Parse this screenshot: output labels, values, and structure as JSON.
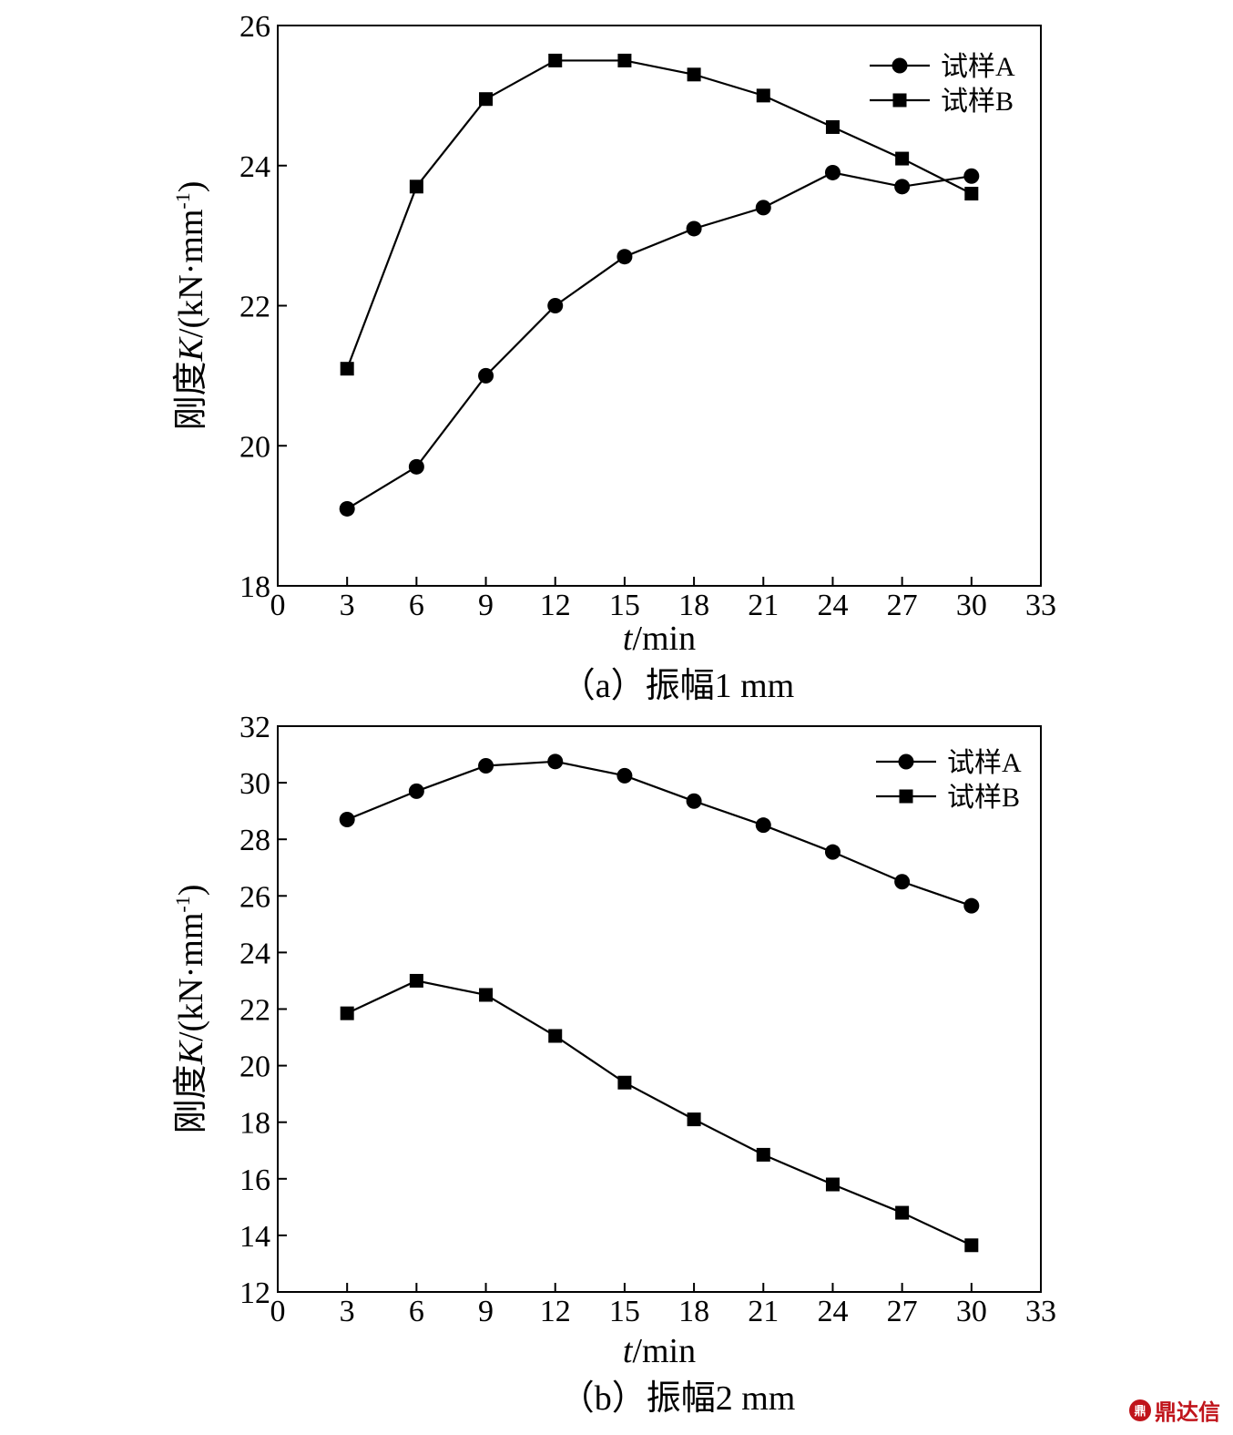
{
  "chart_data": [
    {
      "type": "line",
      "caption": "（a）振幅1 mm",
      "xlabel_italic": "t",
      "xlabel_rest": "/min",
      "ylabel_prefix": "刚度",
      "ylabel_italic": "K",
      "ylabel_rest": "/(kN·mm",
      "ylabel_sup": "-1",
      "ylabel_close": ")",
      "xlim": [
        0,
        33
      ],
      "ylim": [
        18,
        26
      ],
      "xticks": [
        0,
        3,
        6,
        9,
        12,
        15,
        18,
        21,
        24,
        27,
        30,
        33
      ],
      "yticks": [
        18,
        20,
        22,
        24,
        26
      ],
      "grid": false,
      "legend_position": "top-right",
      "series": [
        {
          "name": "试样A",
          "marker": "circle",
          "x": [
            3,
            6,
            9,
            12,
            15,
            18,
            21,
            24,
            27,
            30
          ],
          "y": [
            19.1,
            19.7,
            21.0,
            22.0,
            22.7,
            23.1,
            23.4,
            23.9,
            23.7,
            23.85
          ]
        },
        {
          "name": "试样B",
          "marker": "square",
          "x": [
            3,
            6,
            9,
            12,
            15,
            18,
            21,
            24,
            27,
            30
          ],
          "y": [
            21.1,
            23.7,
            24.95,
            25.5,
            25.5,
            25.3,
            25.0,
            24.55,
            24.1,
            23.6
          ]
        }
      ]
    },
    {
      "type": "line",
      "caption": "（b）振幅2 mm",
      "xlabel_italic": "t",
      "xlabel_rest": "/min",
      "ylabel_prefix": "刚度",
      "ylabel_italic": "K",
      "ylabel_rest": "/(kN·mm",
      "ylabel_sup": "-1",
      "ylabel_close": ")",
      "xlim": [
        0,
        33
      ],
      "ylim": [
        12,
        32
      ],
      "xticks": [
        0,
        3,
        6,
        9,
        12,
        15,
        18,
        21,
        24,
        27,
        30,
        33
      ],
      "yticks": [
        12,
        14,
        16,
        18,
        20,
        22,
        24,
        26,
        28,
        30,
        32
      ],
      "grid": false,
      "legend_position": "top-right",
      "series": [
        {
          "name": "试样A",
          "marker": "circle",
          "x": [
            3,
            6,
            9,
            12,
            15,
            18,
            21,
            24,
            27,
            30
          ],
          "y": [
            28.7,
            29.7,
            30.6,
            30.75,
            30.25,
            29.35,
            28.5,
            27.55,
            26.5,
            25.65
          ]
        },
        {
          "name": "试样B",
          "marker": "square",
          "x": [
            3,
            6,
            9,
            12,
            15,
            18,
            21,
            24,
            27,
            30
          ],
          "y": [
            21.85,
            23.0,
            22.5,
            21.05,
            19.4,
            18.1,
            16.85,
            15.8,
            14.8,
            13.65
          ]
        }
      ]
    }
  ],
  "watermark": {
    "logo_text": "鼎",
    "text": "鼎达信"
  }
}
